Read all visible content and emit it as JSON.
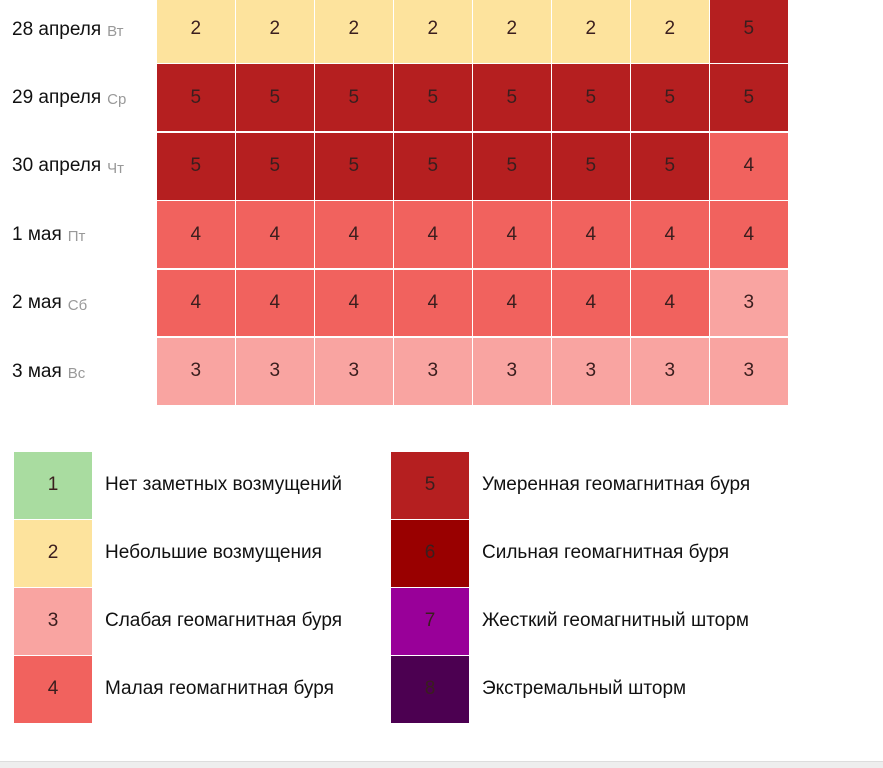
{
  "days": [
    {
      "date": "28 апреля",
      "weekday": "Вт",
      "values": [
        2,
        2,
        2,
        2,
        2,
        2,
        2,
        5
      ]
    },
    {
      "date": "29 апреля",
      "weekday": "Ср",
      "values": [
        5,
        5,
        5,
        5,
        5,
        5,
        5,
        5
      ]
    },
    {
      "date": "30 апреля",
      "weekday": "Чт",
      "values": [
        5,
        5,
        5,
        5,
        5,
        5,
        5,
        4
      ]
    },
    {
      "date": "1 мая",
      "weekday": "Пт",
      "values": [
        4,
        4,
        4,
        4,
        4,
        4,
        4,
        4
      ]
    },
    {
      "date": "2 мая",
      "weekday": "Сб",
      "values": [
        4,
        4,
        4,
        4,
        4,
        4,
        4,
        3
      ]
    },
    {
      "date": "3 мая",
      "weekday": "Вс",
      "values": [
        3,
        3,
        3,
        3,
        3,
        3,
        3,
        3
      ]
    }
  ],
  "legend": [
    {
      "level": 1,
      "label": "Нет заметных возмущений",
      "color": "#a9dca0"
    },
    {
      "level": 2,
      "label": "Небольшие возмущения",
      "color": "#fde39d"
    },
    {
      "level": 3,
      "label": "Слабая геомагнитная буря",
      "color": "#f9a4a1"
    },
    {
      "level": 4,
      "label": "Малая геомагнитная буря",
      "color": "#f1625e"
    },
    {
      "level": 5,
      "label": "Умеренная геомагнитная буря",
      "color": "#b51f20"
    },
    {
      "level": 6,
      "label": "Сильная геомагнитная буря",
      "color": "#990000"
    },
    {
      "level": 7,
      "label": "Жесткий геомагнитный шторм",
      "color": "#990099"
    },
    {
      "level": 8,
      "label": "Экстремальный шторм",
      "color": "#4c0051"
    }
  ]
}
